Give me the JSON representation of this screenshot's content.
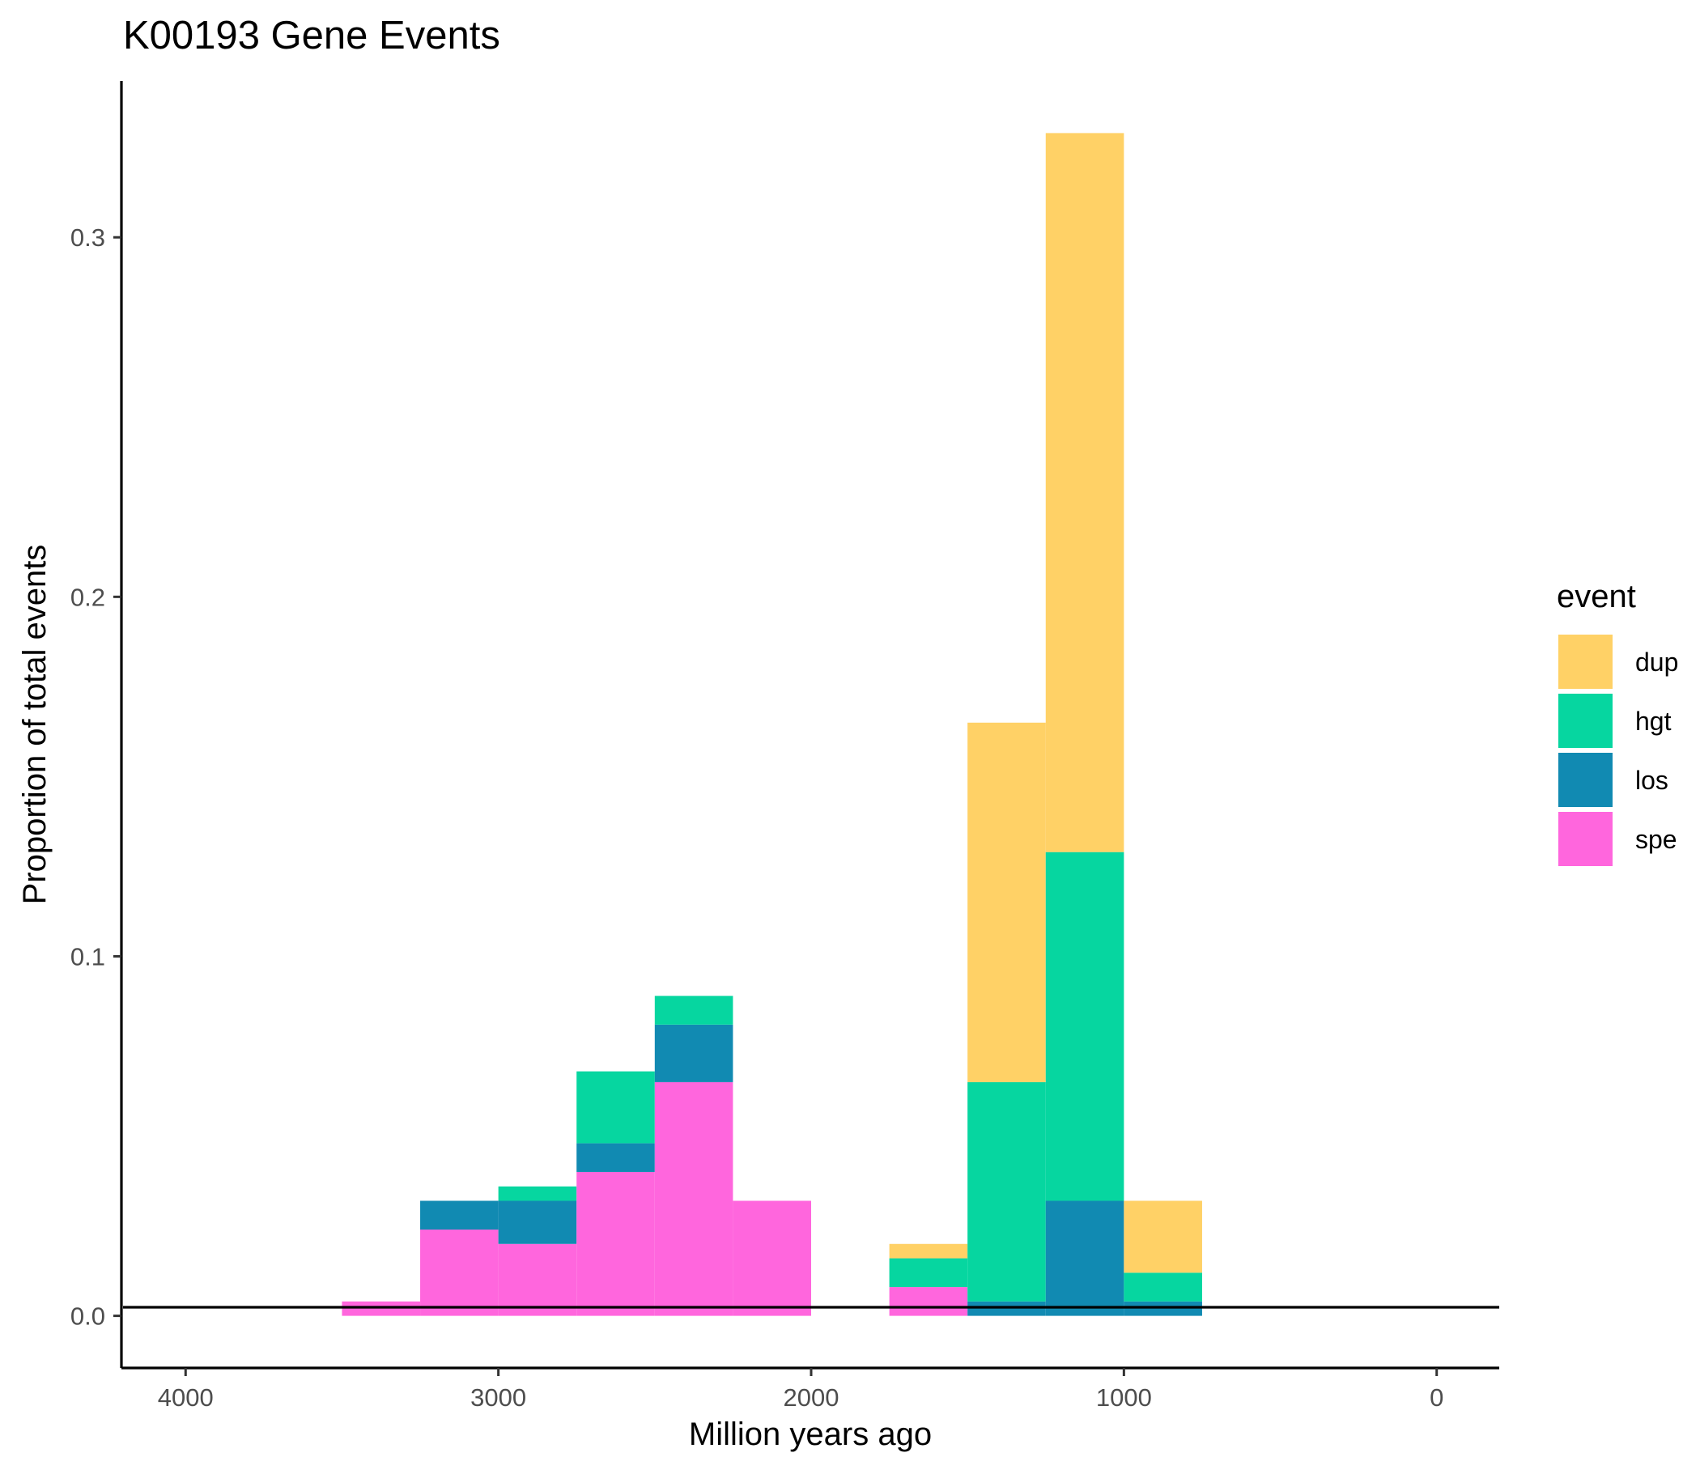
{
  "chart_data": {
    "type": "bar",
    "stacked": true,
    "title": "K00193 Gene Events",
    "xlabel": "Million years ago",
    "ylabel": "Proportion of total events",
    "x_reversed": true,
    "xlim": [
      4200,
      -200
    ],
    "ylim": [
      -0.0145,
      0.3435
    ],
    "x_ticks": [
      4000,
      3000,
      2000,
      1000,
      0
    ],
    "x_tick_labels": [
      "4000",
      "3000",
      "2000",
      "1000",
      "0"
    ],
    "y_ticks": [
      0.0,
      0.1,
      0.2,
      0.3
    ],
    "y_tick_labels": [
      "0.0",
      "0.1",
      "0.2",
      "0.3"
    ],
    "grid": false,
    "legend_title": "event",
    "legend_position": "right",
    "bin_width": 250,
    "bins": [
      3375,
      3125,
      2875,
      2625,
      2375,
      2125,
      1875,
      1625,
      1375,
      1125,
      875
    ],
    "series": [
      {
        "name": "spe",
        "color": "#FF66DD",
        "values": [
          0.004,
          0.024,
          0.02,
          0.04,
          0.065,
          0.032,
          0.0,
          0.008,
          0.0,
          0.0,
          0.0
        ]
      },
      {
        "name": "los",
        "color": "#118AB2",
        "values": [
          0.0,
          0.008,
          0.012,
          0.008,
          0.016,
          0.0,
          0.0,
          0.0,
          0.004,
          0.032,
          0.004
        ]
      },
      {
        "name": "hgt",
        "color": "#06D6A0",
        "values": [
          0.0,
          0.0,
          0.004,
          0.02,
          0.008,
          0.0,
          0.0,
          0.008,
          0.061,
          0.097,
          0.008
        ]
      },
      {
        "name": "dup",
        "color": "#FFD166",
        "values": [
          0.0,
          0.0,
          0.0,
          0.0,
          0.0,
          0.0,
          0.0,
          0.004,
          0.1,
          0.2,
          0.02
        ]
      }
    ],
    "legend_order": [
      "dup",
      "hgt",
      "los",
      "spe"
    ]
  }
}
